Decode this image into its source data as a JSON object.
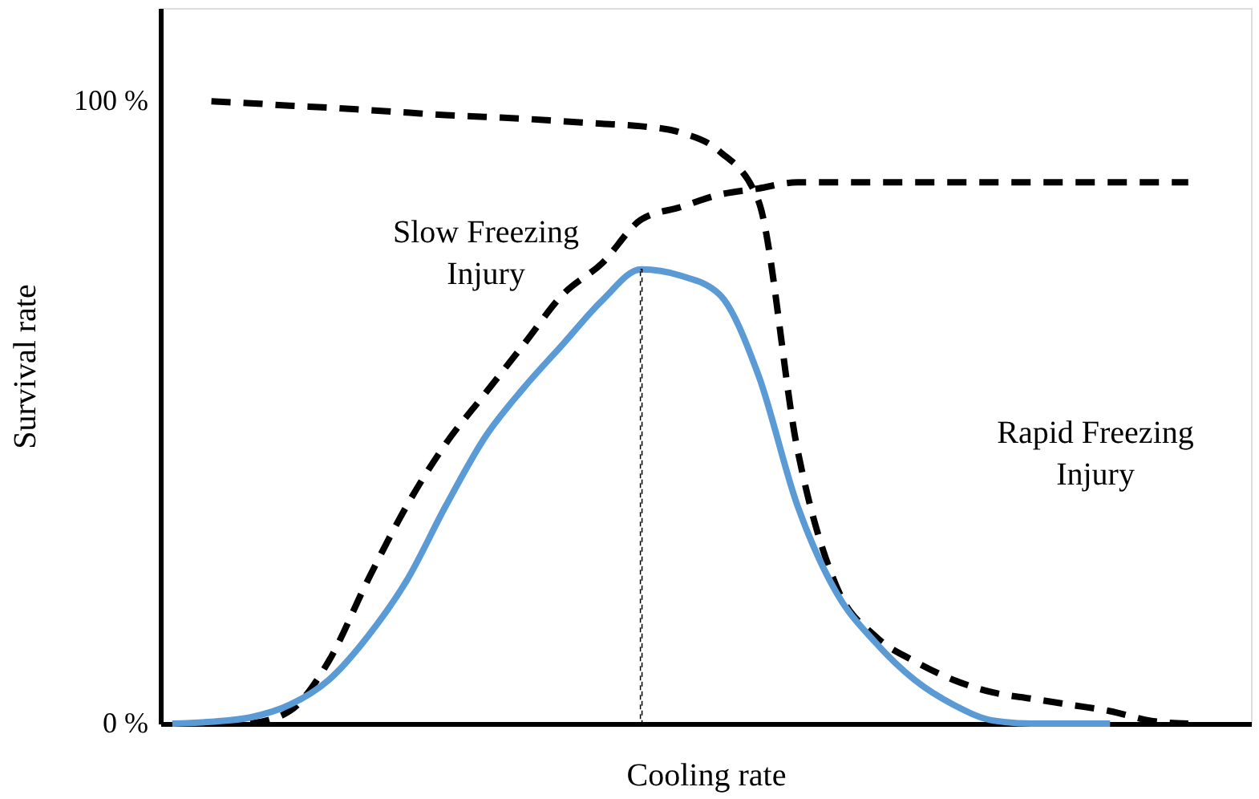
{
  "chart_data": {
    "type": "line",
    "xlabel": "Cooling rate",
    "ylabel": "Survival rate",
    "categories": [
      null,
      null,
      null,
      null,
      null,
      null,
      null,
      null,
      null,
      null,
      null,
      null,
      null,
      null,
      null,
      null,
      null,
      null,
      null,
      null,
      null,
      null,
      null,
      null,
      null,
      null,
      null,
      null
    ],
    "ylim": [
      0,
      115
    ],
    "yticks": [
      {
        "value": 0,
        "label": "0 %"
      },
      {
        "value": 100,
        "label": "100 %"
      }
    ],
    "grid": false,
    "tick_labels": "y",
    "series": [
      {
        "color": "#000000",
        "line_style": "dashed",
        "values": [
          null,
          100,
          99.7,
          99.3,
          99,
          98.6,
          98.2,
          97.8,
          97.5,
          97.2,
          96.8,
          96.4,
          96,
          95,
          92,
          84,
          44,
          22,
          14,
          10,
          7,
          5,
          4,
          3,
          2,
          0.5,
          0,
          null
        ]
      },
      {
        "color": "#000000",
        "line_style": "dashed",
        "values": [
          null,
          null,
          0,
          2,
          10,
          23,
          35,
          45,
          53,
          61,
          69,
          74,
          81,
          83,
          85,
          86,
          87,
          87,
          87,
          87,
          87,
          87,
          87,
          87,
          87,
          87,
          87,
          null
        ]
      },
      {
        "color": "#5b9bd5",
        "line_style": "solid",
        "values": [
          0,
          0.3,
          1,
          3,
          7,
          14,
          23,
          35,
          46,
          54,
          61,
          68,
          73,
          72,
          69,
          56,
          35,
          21,
          13,
          7,
          3,
          0.5,
          0,
          0,
          0,
          null,
          null,
          null
        ]
      },
      {
        "type": "bar",
        "color": "#000000",
        "line_style": "dotted",
        "values": [
          null,
          null,
          null,
          null,
          null,
          null,
          null,
          null,
          null,
          null,
          null,
          null,
          73,
          null,
          null,
          null,
          null,
          null,
          null,
          null,
          null,
          null,
          null,
          null,
          null,
          null,
          null,
          null
        ]
      }
    ],
    "annotations": [
      "Slow Freezing Injury",
      "Rapid Freezing Injury"
    ]
  }
}
